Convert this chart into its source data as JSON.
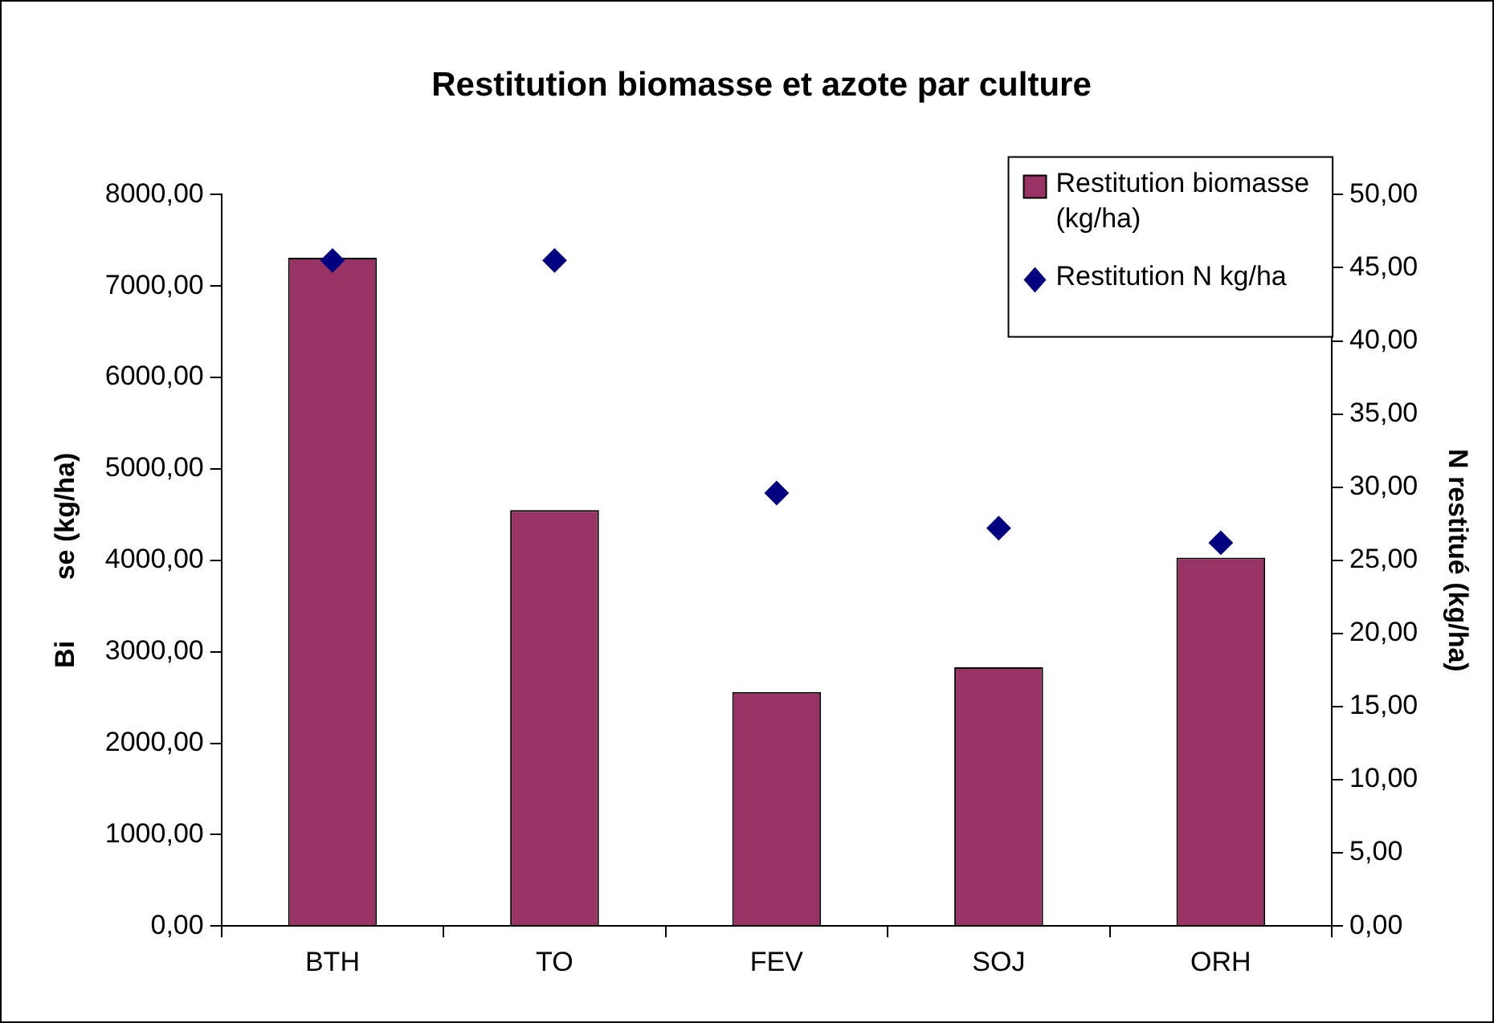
{
  "chart_data": {
    "type": "bar",
    "title": "Restitution biomasse et azote par culture",
    "ylabel": "Bi        se (kg/ha)",
    "y2label": "N restitué (kg/ha)",
    "categories": [
      "BTH",
      "TO",
      "FEV",
      "SOJ",
      "ORH"
    ],
    "series": [
      {
        "name": "Restitution biomasse\n(kg/ha)",
        "color": "#993366",
        "values": [
          7310,
          4550,
          2560,
          2830,
          4030
        ]
      },
      {
        "name": "Restitution N kg/ha",
        "type": "scatter",
        "axis": "y2",
        "color": "#000080",
        "marker": "diamond",
        "values": [
          45.5,
          45.5,
          29.6,
          27.2,
          26.2
        ]
      }
    ],
    "ylim": [
      0,
      8000
    ],
    "yticks": [
      {
        "value": 0,
        "label": "0,00"
      },
      {
        "value": 1000,
        "label": "1000,00"
      },
      {
        "value": 2000,
        "label": "2000,00"
      },
      {
        "value": 3000,
        "label": "3000,00"
      },
      {
        "value": 4000,
        "label": "4000,00"
      },
      {
        "value": 5000,
        "label": "5000,00"
      },
      {
        "value": 6000,
        "label": "6000,00"
      },
      {
        "value": 7000,
        "label": "7000,00"
      },
      {
        "value": 8000,
        "label": "8000,00"
      }
    ],
    "y2lim": [
      0,
      50
    ],
    "y2ticks": [
      {
        "value": 0,
        "label": "0,00"
      },
      {
        "value": 5,
        "label": "5,00"
      },
      {
        "value": 10,
        "label": "10,00"
      },
      {
        "value": 15,
        "label": "15,00"
      },
      {
        "value": 20,
        "label": "20,00"
      },
      {
        "value": 25,
        "label": "25,00"
      },
      {
        "value": 30,
        "label": "30,00"
      },
      {
        "value": 35,
        "label": "35,00"
      },
      {
        "value": 40,
        "label": "40,00"
      },
      {
        "value": 45,
        "label": "45,00"
      },
      {
        "value": 50,
        "label": "50,00"
      }
    ],
    "grid": false,
    "legend": "top right"
  }
}
